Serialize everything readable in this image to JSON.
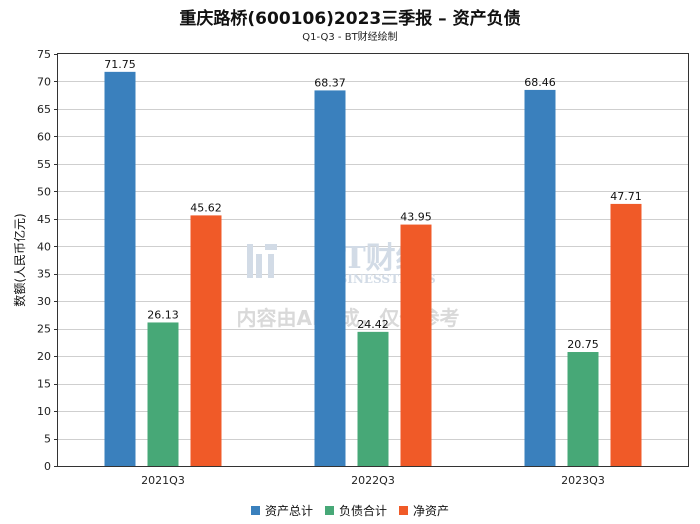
{
  "chart_data": {
    "type": "bar",
    "title": "重庆路桥(600106)2023三季报 – 资产负债",
    "subtitle": "Q1-Q3 - BT财经绘制",
    "ylabel": "数额(人民币亿元)",
    "xlabel": "",
    "categories": [
      "2021Q3",
      "2022Q3",
      "2023Q3"
    ],
    "ylim": [
      0,
      75
    ],
    "yticks": [
      0,
      5,
      10,
      15,
      20,
      25,
      30,
      35,
      40,
      45,
      50,
      55,
      60,
      65,
      70,
      75
    ],
    "grid": true,
    "legend_position": "bottom",
    "series": [
      {
        "name": "资产总计",
        "color": "#3a80bd",
        "values": [
          71.75,
          68.37,
          68.46
        ],
        "labels": [
          "71.75",
          "68.37",
          "68.46"
        ]
      },
      {
        "name": "负债合计",
        "color": "#47a877",
        "values": [
          26.13,
          24.42,
          20.75
        ],
        "labels": [
          "26.13",
          "24.42",
          "20.75"
        ]
      },
      {
        "name": "净资产",
        "color": "#f05a28",
        "values": [
          45.62,
          43.95,
          47.71
        ],
        "labels": [
          "45.62",
          "43.95",
          "47.71"
        ]
      }
    ]
  },
  "watermark": {
    "brand": "BT财经",
    "brand_en": "BUSINESSTIMES",
    "notice": "内容由AI生成，仅供参考"
  }
}
